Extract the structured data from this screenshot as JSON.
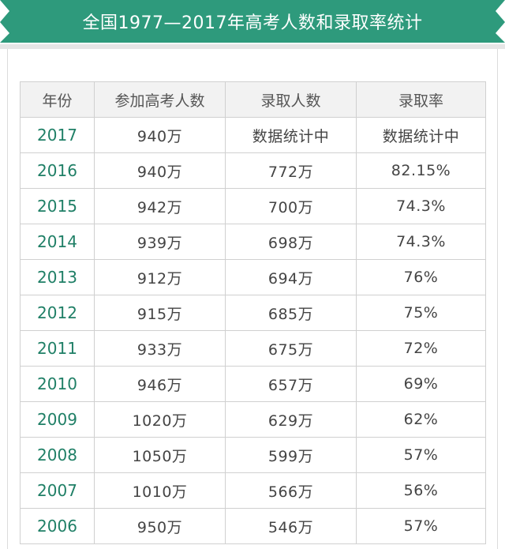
{
  "banner": {
    "title": "全国1977—2017年高考人数和录取率统计",
    "color": "#2e9a7c"
  },
  "table": {
    "headers": [
      "年份",
      "参加高考人数",
      "录取人数",
      "录取率"
    ],
    "rows": [
      [
        "2017",
        "940万",
        "数据统计中",
        "数据统计中"
      ],
      [
        "2016",
        "940万",
        "772万",
        "82.15%"
      ],
      [
        "2015",
        "942万",
        "700万",
        "74.3%"
      ],
      [
        "2014",
        "939万",
        "698万",
        "74.3%"
      ],
      [
        "2013",
        "912万",
        "694万",
        "76%"
      ],
      [
        "2012",
        "915万",
        "685万",
        "75%"
      ],
      [
        "2011",
        "933万",
        "675万",
        "72%"
      ],
      [
        "2010",
        "946万",
        "657万",
        "69%"
      ],
      [
        "2009",
        "1020万",
        "629万",
        "62%"
      ],
      [
        "2008",
        "1050万",
        "599万",
        "57%"
      ],
      [
        "2007",
        "1010万",
        "566万",
        "56%"
      ],
      [
        "2006",
        "950万",
        "546万",
        "57%"
      ]
    ]
  }
}
